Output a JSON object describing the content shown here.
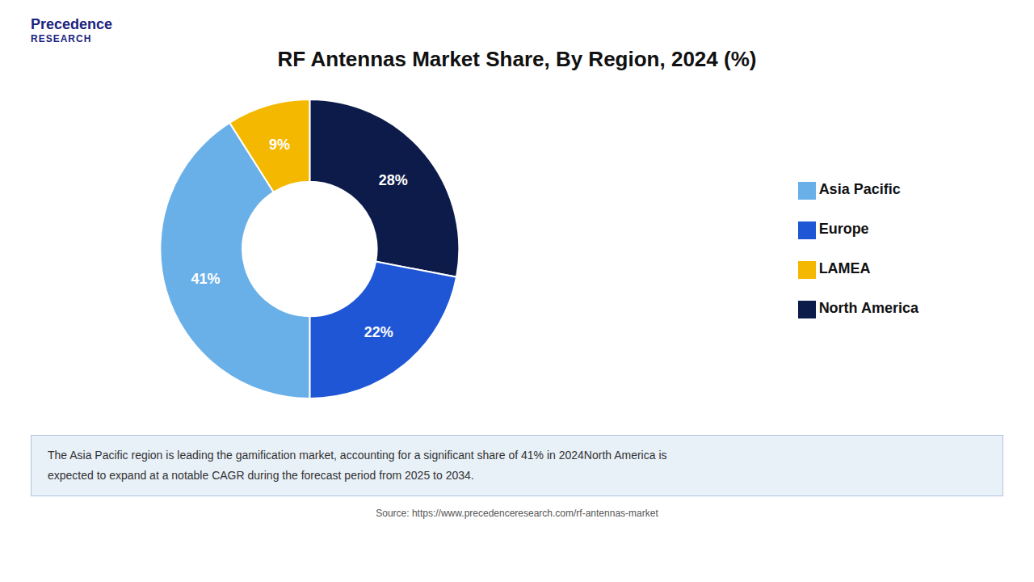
{
  "chart_data": {
    "type": "pie",
    "title": "RF Antennas Market Share, By Region, 2024 (%)",
    "categories": [
      "North America",
      "Europe",
      "Asia Pacific",
      "LAMEA"
    ],
    "values": [
      28,
      22,
      41,
      9
    ],
    "value_labels": [
      "28%",
      "22%",
      "41%",
      "9%"
    ],
    "colors": [
      "#0d1b4b",
      "#1e56d6",
      "#6ab0e8",
      "#f5b800"
    ],
    "data_labels": true,
    "legend": "right",
    "annotations": [
      "Precedence",
      "RESEARCH",
      "The Asia Pacific region is leading the gamification market, accounting for a significant share of 41% in 2024North America is\nexpected to expand at a notable CAGR during the forecast period from 2025 to 2034.",
      "Source: https://www.precedenceresearch.com/rf-antennas-market"
    ]
  }
}
